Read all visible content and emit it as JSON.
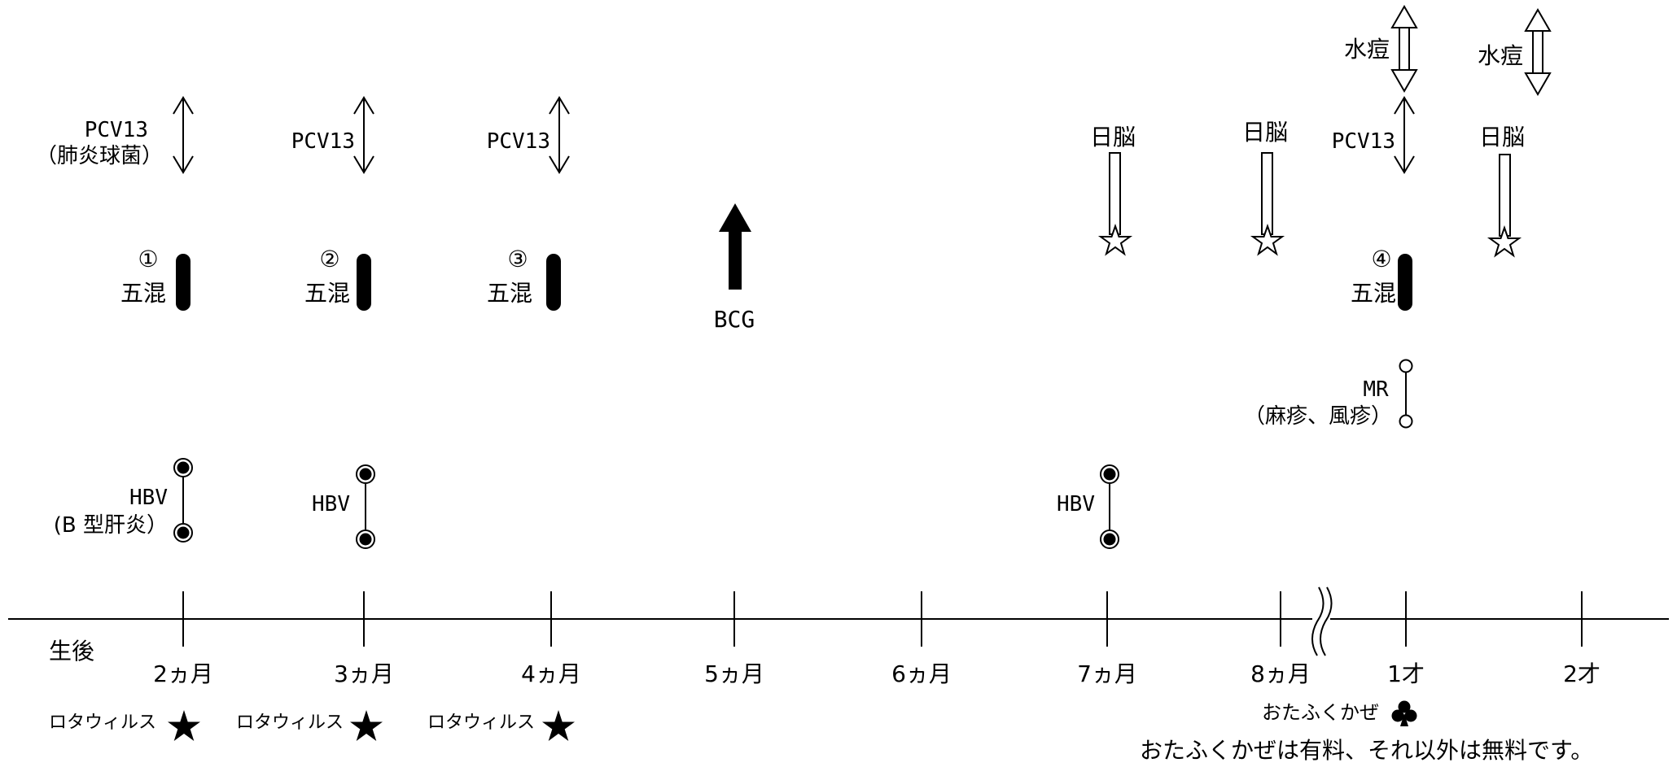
{
  "timeline": {
    "start_label": "生後",
    "ticks": [
      "2ヵ月",
      "3ヵ月",
      "4ヵ月",
      "5ヵ月",
      "6ヵ月",
      "7ヵ月",
      "8ヵ月",
      "1才",
      "2才"
    ]
  },
  "vaccines": {
    "pcv13": {
      "label_1": "PCV13",
      "label_2": "（肺炎球菌）",
      "label": "PCV13"
    },
    "gokon": {
      "label": "五混",
      "doses": [
        "①",
        "②",
        "③",
        "④"
      ]
    },
    "bcg": {
      "label": "BCG"
    },
    "hbv": {
      "label": "HBV",
      "sub": "(B 型肝炎）"
    },
    "nichino": {
      "label": "日脳"
    },
    "suito": {
      "label": "水痘"
    },
    "mr": {
      "label": "MR",
      "sub": "（麻疹、風疹）"
    },
    "rota": {
      "label": "ロタウィルス"
    },
    "otafuku": {
      "label": "おたふくかぜ"
    }
  },
  "note": "おたふくかぜは有料、それ以外は無料です。"
}
